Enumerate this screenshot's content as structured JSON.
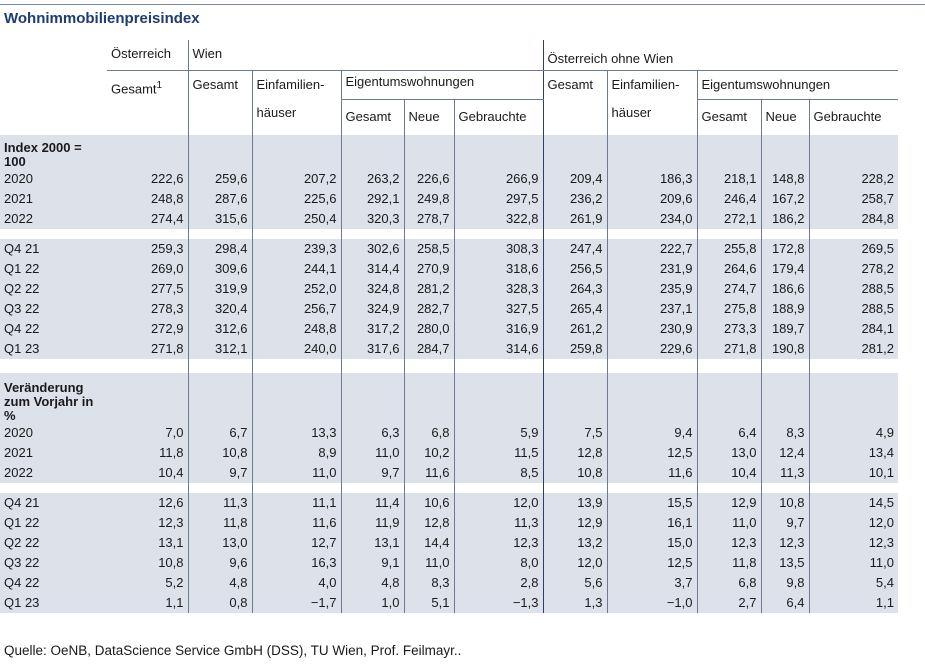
{
  "title": "Wohnimmobilienpreisindex",
  "headers": {
    "oesterreich": "Österreich",
    "wien": "Wien",
    "oesterreich_ohne_wien": "Österreich ohne Wien",
    "gesamt_fn": "Gesamt",
    "footnote": "1",
    "gesamt": "Gesamt",
    "efh_line1": "Einfamilien-",
    "efh_line2": "häuser",
    "etw": "Eigentumswohnungen",
    "neue": "Neue",
    "gebrauchte": "Gebrauchte"
  },
  "section1": {
    "label": "Index 2000 = 100",
    "annual": [
      {
        "label": "2020",
        "values": [
          "222,6",
          "259,6",
          "207,2",
          "263,2",
          "226,6",
          "266,9",
          "209,4",
          "186,3",
          "218,1",
          "148,8",
          "228,2"
        ]
      },
      {
        "label": "2021",
        "values": [
          "248,8",
          "287,6",
          "225,6",
          "292,1",
          "249,8",
          "297,5",
          "236,2",
          "209,6",
          "246,4",
          "167,2",
          "258,7"
        ]
      },
      {
        "label": "2022",
        "values": [
          "274,4",
          "315,6",
          "250,4",
          "320,3",
          "278,7",
          "322,8",
          "261,9",
          "234,0",
          "272,1",
          "186,2",
          "284,8"
        ]
      }
    ],
    "quarterly": [
      {
        "label": "Q4 21",
        "values": [
          "259,3",
          "298,4",
          "239,3",
          "302,6",
          "258,5",
          "308,3",
          "247,4",
          "222,7",
          "255,8",
          "172,8",
          "269,5"
        ]
      },
      {
        "label": "Q1 22",
        "values": [
          "269,0",
          "309,6",
          "244,1",
          "314,4",
          "270,9",
          "318,6",
          "256,5",
          "231,9",
          "264,6",
          "179,4",
          "278,2"
        ]
      },
      {
        "label": "Q2 22",
        "values": [
          "277,5",
          "319,9",
          "252,0",
          "324,8",
          "281,2",
          "328,3",
          "264,3",
          "235,9",
          "274,7",
          "186,6",
          "288,5"
        ]
      },
      {
        "label": "Q3 22",
        "values": [
          "278,3",
          "320,4",
          "256,7",
          "324,9",
          "282,7",
          "327,5",
          "265,4",
          "237,1",
          "275,8",
          "188,9",
          "288,5"
        ]
      },
      {
        "label": "Q4 22",
        "values": [
          "272,9",
          "312,6",
          "248,8",
          "317,2",
          "280,0",
          "316,9",
          "261,2",
          "230,9",
          "273,3",
          "189,7",
          "284,1"
        ]
      },
      {
        "label": "Q1 23",
        "values": [
          "271,8",
          "312,1",
          "240,0",
          "317,6",
          "284,7",
          "314,6",
          "259,8",
          "229,6",
          "271,8",
          "190,8",
          "281,2"
        ]
      }
    ]
  },
  "section2": {
    "label": "Veränderung zum Vorjahr in %",
    "annual": [
      {
        "label": "2020",
        "values": [
          "7,0",
          "6,7",
          "13,3",
          "6,3",
          "6,8",
          "5,9",
          "7,5",
          "9,4",
          "6,4",
          "8,3",
          "4,9"
        ]
      },
      {
        "label": "2021",
        "values": [
          "11,8",
          "10,8",
          "8,9",
          "11,0",
          "10,2",
          "11,5",
          "12,8",
          "12,5",
          "13,0",
          "12,4",
          "13,4"
        ]
      },
      {
        "label": "2022",
        "values": [
          "10,4",
          "9,7",
          "11,0",
          "9,7",
          "11,6",
          "8,5",
          "10,8",
          "11,6",
          "10,4",
          "11,3",
          "10,1"
        ]
      }
    ],
    "quarterly": [
      {
        "label": "Q4 21",
        "values": [
          "12,6",
          "11,3",
          "11,1",
          "11,4",
          "10,6",
          "12,0",
          "13,9",
          "15,5",
          "12,9",
          "10,8",
          "14,5"
        ]
      },
      {
        "label": "Q1 22",
        "values": [
          "12,3",
          "11,8",
          "11,6",
          "11,9",
          "12,8",
          "11,3",
          "12,9",
          "16,1",
          "11,0",
          "9,7",
          "12,0"
        ]
      },
      {
        "label": "Q2 22",
        "values": [
          "13,1",
          "13,0",
          "12,7",
          "13,1",
          "14,4",
          "12,3",
          "13,2",
          "15,0",
          "12,3",
          "12,3",
          "12,3"
        ]
      },
      {
        "label": "Q3 22",
        "values": [
          "10,8",
          "9,6",
          "16,3",
          "9,1",
          "11,0",
          "8,0",
          "12,0",
          "12,5",
          "11,8",
          "13,5",
          "11,0"
        ]
      },
      {
        "label": "Q4 22",
        "values": [
          "5,2",
          "4,8",
          "4,0",
          "4,8",
          "8,3",
          "2,8",
          "5,6",
          "3,7",
          "6,8",
          "9,8",
          "5,4"
        ]
      },
      {
        "label": "Q1 23",
        "values": [
          "1,1",
          "0,8",
          "−1,7",
          "1,0",
          "5,1",
          "−1,3",
          "1,3",
          "−1,0",
          "2,7",
          "6,4",
          "1,1"
        ]
      }
    ]
  },
  "source": "Quelle: OeNB, DataScience Service GmbH (DSS), TU Wien, Prof. Feilmayr.."
}
